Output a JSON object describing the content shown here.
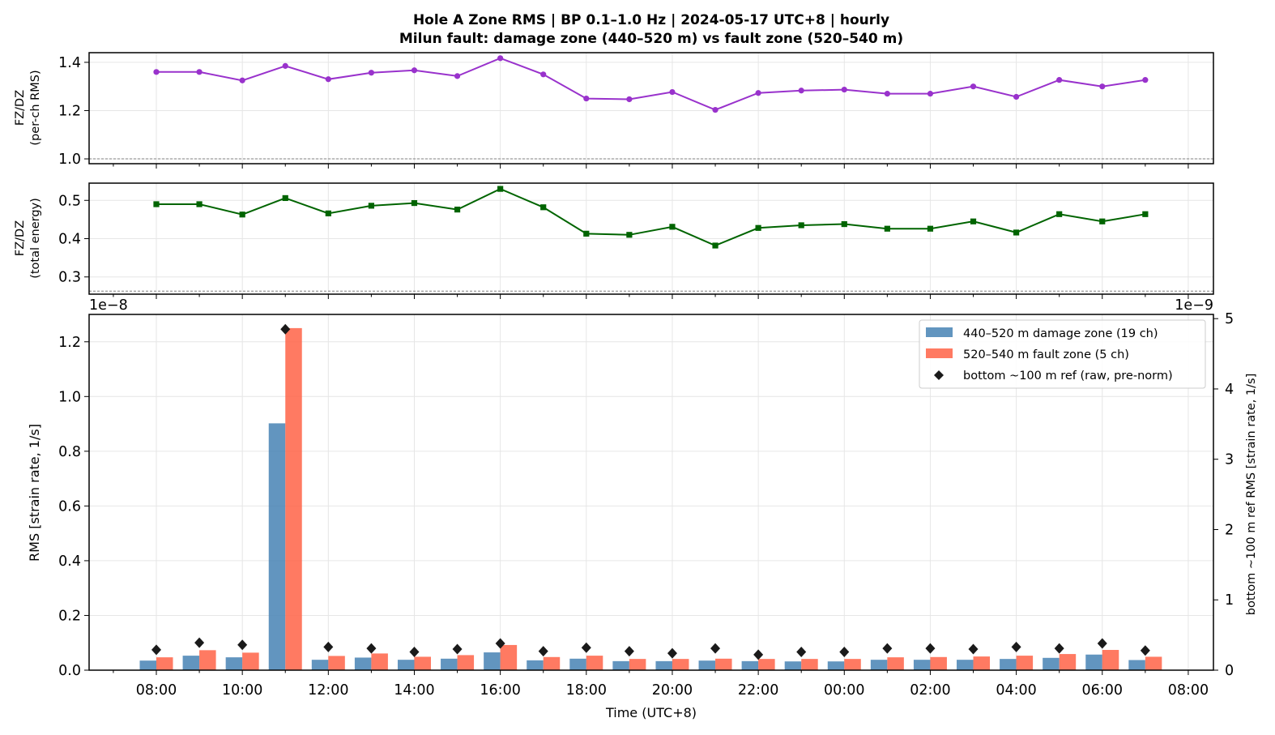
{
  "figure": {
    "title_line1": "Hole A Zone RMS  |  BP 0.1–1.0 Hz  |  2024-05-17 UTC+8  |  hourly",
    "title_line2": "Milun fault: damage zone (440–520 m) vs fault zone (520–540 m)"
  },
  "colors": {
    "rms_ratio_line": "#9932cc",
    "energy_ratio_line": "#006400",
    "damage_zone_bar": "#4682b4",
    "fault_zone_bar": "#ff6347",
    "reference_marker": "#1a1a1a",
    "grid": "#e6e6e6"
  },
  "x_ticks": [
    "08:00",
    "10:00",
    "12:00",
    "14:00",
    "16:00",
    "18:00",
    "20:00",
    "22:00",
    "00:00",
    "02:00",
    "04:00",
    "06:00",
    "08:00"
  ],
  "chart_data": [
    {
      "type": "line",
      "panel": "top",
      "ylabel_line1": "FZ/DZ",
      "ylabel_line2": "(per-ch RMS)",
      "ylim": [
        0.98,
        1.44
      ],
      "yticks": [
        "1.0",
        "1.2",
        "1.4"
      ],
      "ytick_values": [
        1.0,
        1.2,
        1.4
      ],
      "reference_line": 1.0,
      "grid": true,
      "hours": [
        8,
        9,
        10,
        11,
        12,
        13,
        14,
        15,
        16,
        17,
        18,
        19,
        20,
        21,
        22,
        23,
        24,
        25,
        26,
        27,
        28,
        29,
        30,
        31
      ],
      "values": [
        1.36,
        1.36,
        1.325,
        1.385,
        1.33,
        1.357,
        1.367,
        1.343,
        1.417,
        1.35,
        1.25,
        1.247,
        1.277,
        1.203,
        1.273,
        1.283,
        1.287,
        1.27,
        1.27,
        1.3,
        1.257,
        1.327,
        1.3,
        1.327
      ]
    },
    {
      "type": "line",
      "panel": "middle",
      "ylabel_line1": "FZ/DZ",
      "ylabel_line2": "(total energy)",
      "ylim": [
        0.255,
        0.545
      ],
      "yticks": [
        "0.3",
        "0.4",
        "0.5"
      ],
      "ytick_values": [
        0.3,
        0.4,
        0.5
      ],
      "reference_line": 0.263,
      "grid": true,
      "hours": [
        8,
        9,
        10,
        11,
        12,
        13,
        14,
        15,
        16,
        17,
        18,
        19,
        20,
        21,
        22,
        23,
        24,
        25,
        26,
        27,
        28,
        29,
        30,
        31
      ],
      "values": [
        0.49,
        0.49,
        0.463,
        0.506,
        0.466,
        0.486,
        0.493,
        0.476,
        0.53,
        0.482,
        0.413,
        0.41,
        0.431,
        0.382,
        0.428,
        0.435,
        0.438,
        0.426,
        0.426,
        0.445,
        0.416,
        0.464,
        0.445,
        0.464
      ]
    },
    {
      "type": "bar",
      "panel": "bottom",
      "xlabel": "Time (UTC+8)",
      "ylabel": "RMS  [strain rate, 1/s]",
      "y2label": "bottom ~100 m ref RMS  [strain rate, 1/s]",
      "y_scale_label": "1e−8",
      "y2_scale_label": "1e−9",
      "ylim": [
        0,
        1.3
      ],
      "y2lim": [
        0,
        5.06
      ],
      "yticks": [
        "0.0",
        "0.2",
        "0.4",
        "0.6",
        "0.8",
        "1.0",
        "1.2"
      ],
      "ytick_values": [
        0,
        0.2,
        0.4,
        0.6,
        0.8,
        1.0,
        1.2
      ],
      "y2ticks": [
        "0",
        "1",
        "2",
        "3",
        "4",
        "5"
      ],
      "y2tick_values": [
        0,
        1,
        2,
        3,
        4,
        5
      ],
      "grid": true,
      "legend_position": "top-right",
      "hours": [
        8,
        9,
        10,
        11,
        12,
        13,
        14,
        15,
        16,
        17,
        18,
        19,
        20,
        21,
        22,
        23,
        24,
        25,
        26,
        27,
        28,
        29,
        30,
        31
      ],
      "series": [
        {
          "name": "440–520 m  damage zone (19 ch)",
          "axis": "left",
          "values": [
            0.035,
            0.053,
            0.047,
            0.902,
            0.038,
            0.046,
            0.038,
            0.042,
            0.065,
            0.036,
            0.042,
            0.033,
            0.033,
            0.035,
            0.033,
            0.032,
            0.032,
            0.038,
            0.038,
            0.038,
            0.041,
            0.045,
            0.057,
            0.037
          ]
        },
        {
          "name": "520–540 m  fault zone (5 ch)",
          "axis": "left",
          "values": [
            0.047,
            0.073,
            0.064,
            1.25,
            0.052,
            0.061,
            0.049,
            0.055,
            0.092,
            0.048,
            0.053,
            0.041,
            0.041,
            0.042,
            0.041,
            0.041,
            0.041,
            0.047,
            0.048,
            0.05,
            0.053,
            0.059,
            0.074,
            0.049
          ]
        },
        {
          "name": "bottom ~100 m ref (raw, pre-norm)",
          "axis": "right",
          "marker": "diamond",
          "values": [
            0.29,
            0.39,
            0.36,
            4.85,
            0.33,
            0.31,
            0.26,
            0.3,
            0.38,
            0.27,
            0.32,
            0.27,
            0.24,
            0.31,
            0.22,
            0.26,
            0.26,
            0.31,
            0.31,
            0.3,
            0.33,
            0.31,
            0.38,
            0.28
          ]
        }
      ]
    }
  ]
}
